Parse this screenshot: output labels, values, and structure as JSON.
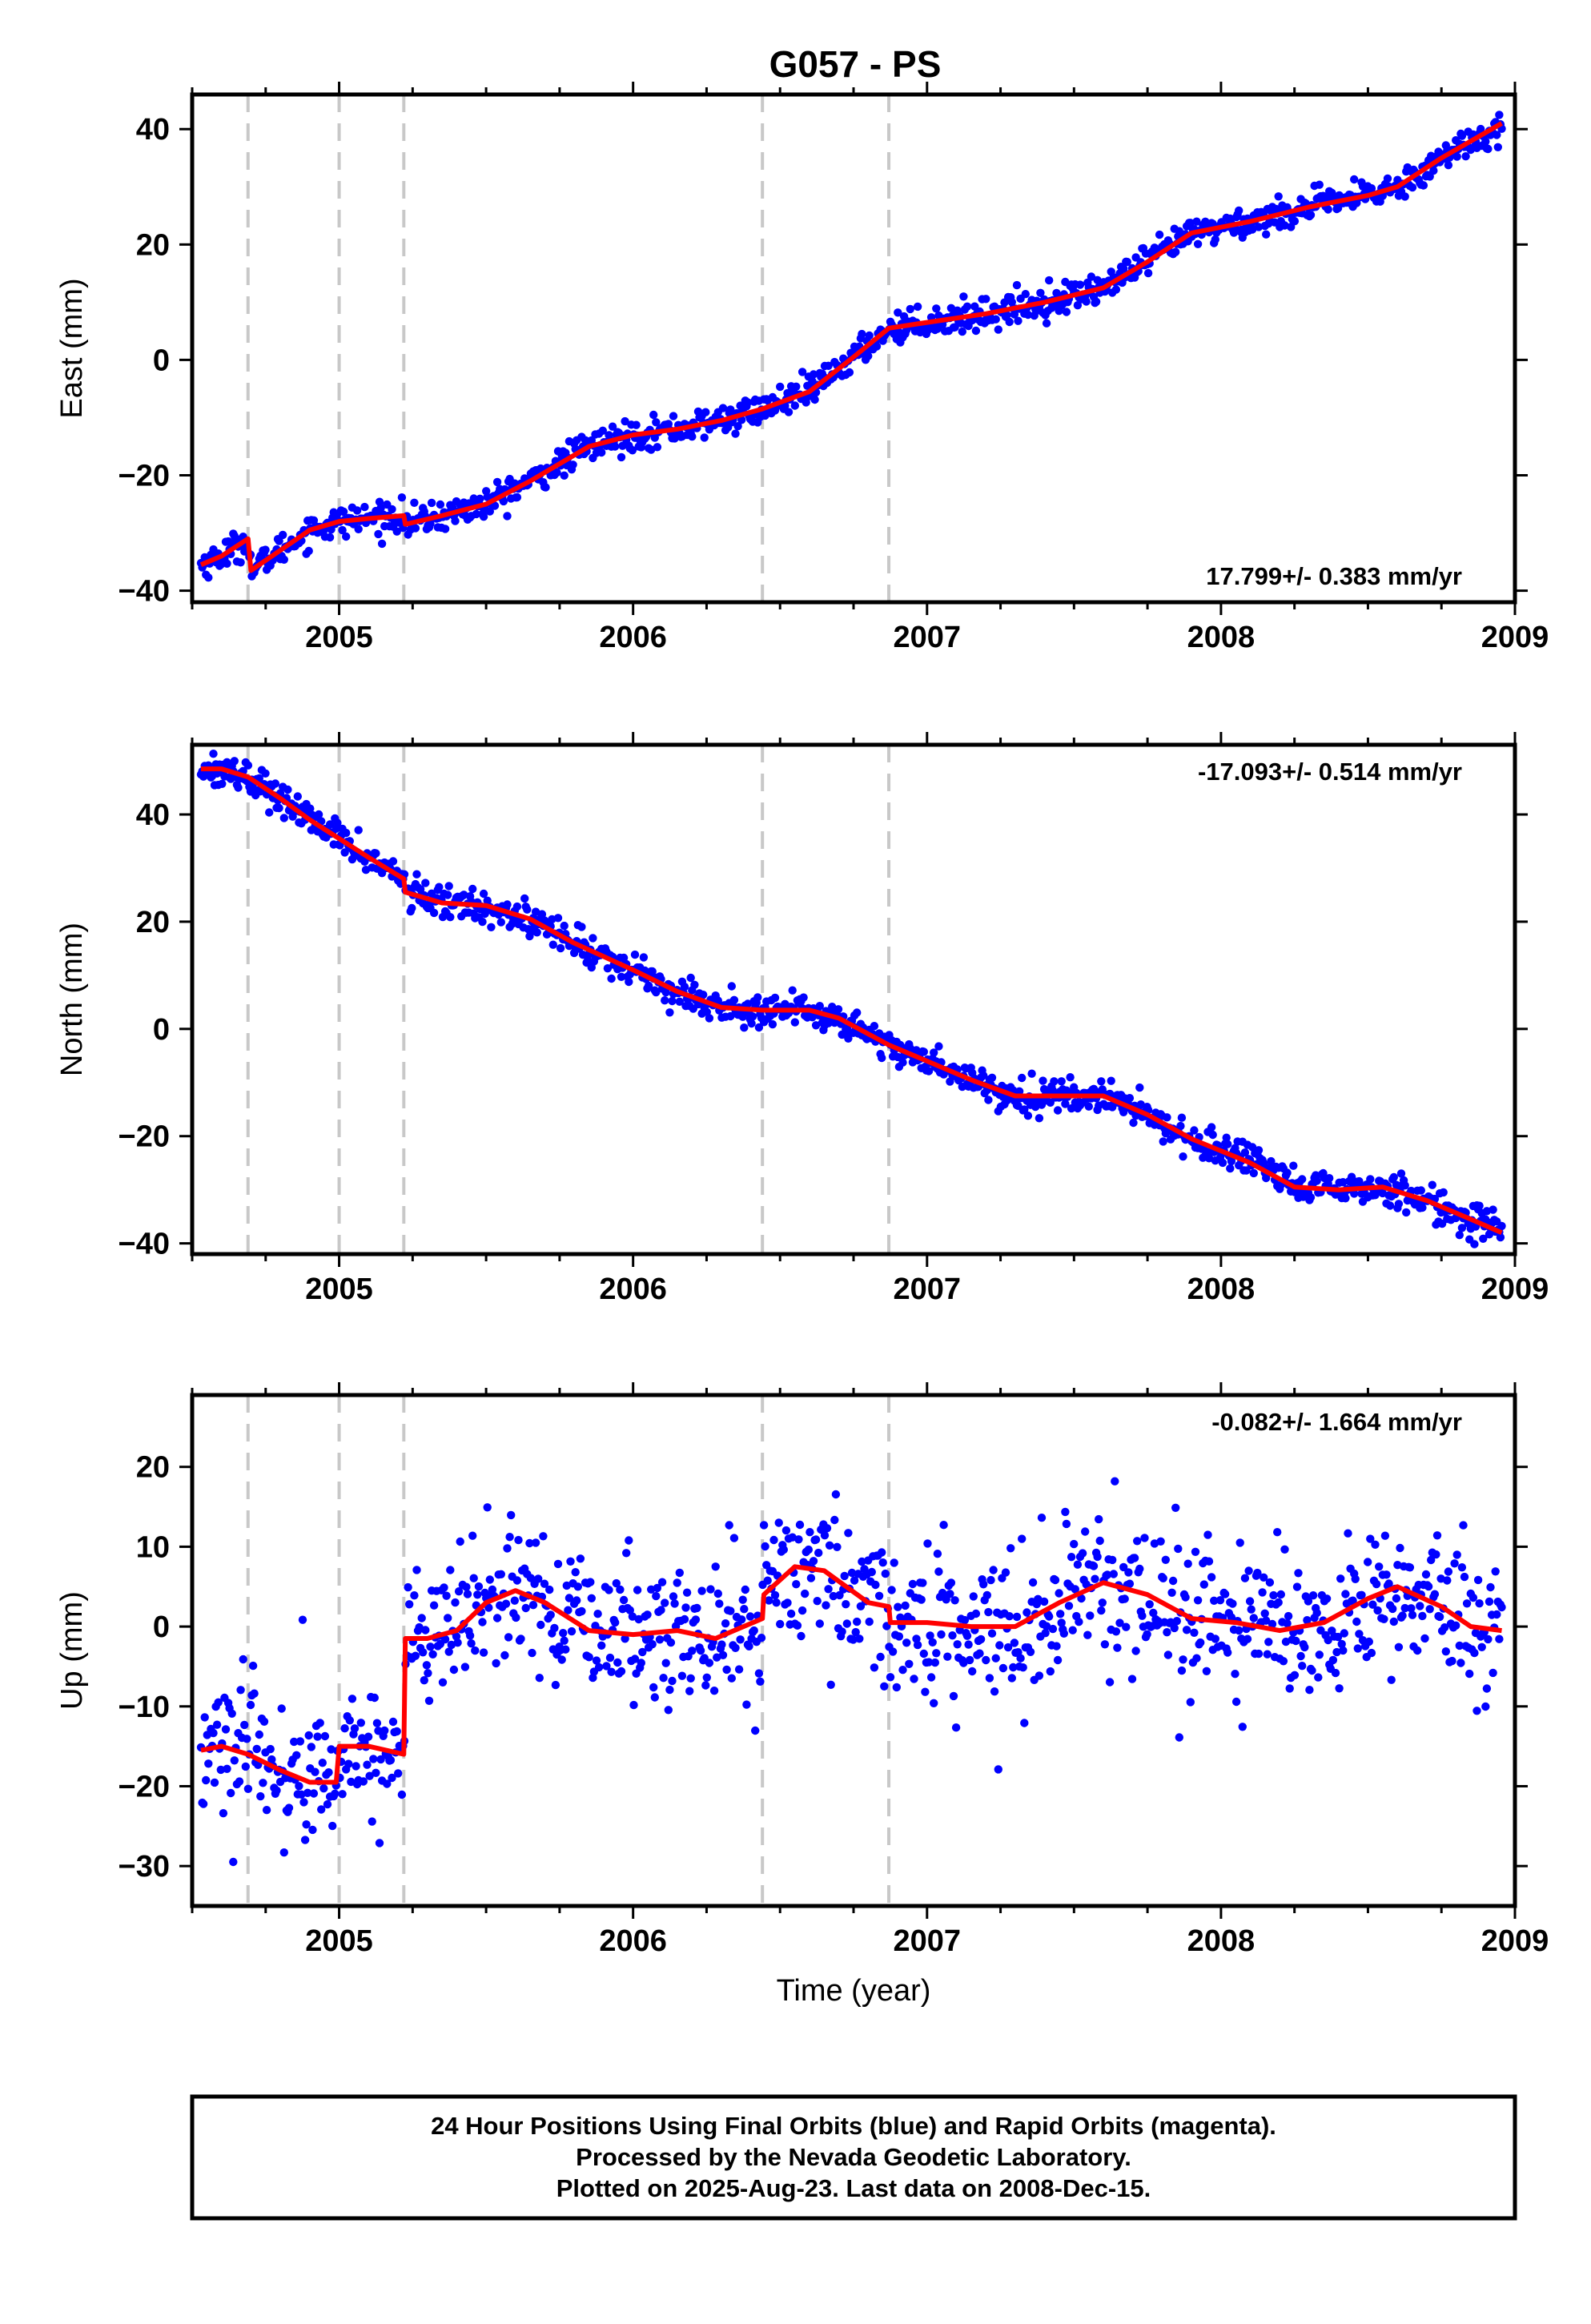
{
  "chart_data": {
    "title": "G057 - PS",
    "type": "scatter",
    "x_ticks": [
      2005,
      2006,
      2007,
      2008,
      2009
    ],
    "xlim": [
      2004.5,
      2009.0
    ],
    "xlabel": "Time (year)",
    "event_lines": [
      2004.69,
      2005.0,
      2005.22,
      2006.44,
      2006.87
    ],
    "event_line_color": "#c8c8c8",
    "point_color": "#0000ff",
    "fit_color": "#ff0000",
    "data_start": 2004.53,
    "data_end": 2008.955,
    "panels": [
      {
        "id": "east",
        "ylabel": "East (mm)",
        "ylim": [
          -42,
          46
        ],
        "y_ticks": [
          -40,
          -20,
          0,
          20,
          40
        ],
        "rate": "17.799+/- 0.383 mm/yr",
        "rate_position": "bottom-right",
        "noise_sd": 1.3,
        "point_count": 1050,
        "fit": [
          [
            2004.53,
            -35.5
          ],
          [
            2004.6,
            -34
          ],
          [
            2004.69,
            -31
          ],
          [
            2004.7,
            -36.5
          ],
          [
            2004.8,
            -33
          ],
          [
            2004.9,
            -29.5
          ],
          [
            2005.0,
            -28
          ],
          [
            2005.1,
            -27.5
          ],
          [
            2005.22,
            -27
          ],
          [
            2005.225,
            -28.5
          ],
          [
            2005.35,
            -27
          ],
          [
            2005.5,
            -25
          ],
          [
            2005.65,
            -21
          ],
          [
            2005.85,
            -15
          ],
          [
            2006.0,
            -13
          ],
          [
            2006.15,
            -12
          ],
          [
            2006.3,
            -10.5
          ],
          [
            2006.44,
            -8.5
          ],
          [
            2006.6,
            -5.5
          ],
          [
            2006.75,
            0.5
          ],
          [
            2006.87,
            5.5
          ],
          [
            2007.0,
            6.5
          ],
          [
            2007.2,
            8
          ],
          [
            2007.4,
            10
          ],
          [
            2007.6,
            12.5
          ],
          [
            2007.75,
            17
          ],
          [
            2007.9,
            22
          ],
          [
            2008.1,
            24
          ],
          [
            2008.3,
            26.5
          ],
          [
            2008.5,
            28.5
          ],
          [
            2008.6,
            30
          ],
          [
            2008.75,
            35
          ],
          [
            2008.955,
            41
          ]
        ]
      },
      {
        "id": "north",
        "ylabel": "North (mm)",
        "ylim": [
          -42,
          53
        ],
        "y_ticks": [
          -40,
          -20,
          0,
          20,
          40
        ],
        "rate": "-17.093+/- 0.514 mm/yr",
        "rate_position": "top-right",
        "noise_sd": 1.5,
        "point_count": 1050,
        "fit": [
          [
            2004.53,
            48.5
          ],
          [
            2004.6,
            48.5
          ],
          [
            2004.69,
            47
          ],
          [
            2004.8,
            43
          ],
          [
            2004.9,
            39
          ],
          [
            2005.0,
            35.5
          ],
          [
            2005.1,
            32
          ],
          [
            2005.22,
            28
          ],
          [
            2005.225,
            25.5
          ],
          [
            2005.35,
            23.5
          ],
          [
            2005.5,
            23
          ],
          [
            2005.65,
            20.5
          ],
          [
            2005.8,
            16
          ],
          [
            2006.0,
            11
          ],
          [
            2006.15,
            7
          ],
          [
            2006.3,
            4
          ],
          [
            2006.44,
            3.5
          ],
          [
            2006.6,
            3.5
          ],
          [
            2006.7,
            2
          ],
          [
            2006.87,
            -3
          ],
          [
            2007.0,
            -6
          ],
          [
            2007.15,
            -9.5
          ],
          [
            2007.3,
            -12.5
          ],
          [
            2007.45,
            -12.5
          ],
          [
            2007.6,
            -12.5
          ],
          [
            2007.75,
            -16
          ],
          [
            2007.9,
            -20.5
          ],
          [
            2008.1,
            -25
          ],
          [
            2008.25,
            -29.5
          ],
          [
            2008.4,
            -30
          ],
          [
            2008.55,
            -29.5
          ],
          [
            2008.7,
            -32
          ],
          [
            2008.85,
            -35.5
          ],
          [
            2008.955,
            -38
          ]
        ]
      },
      {
        "id": "up",
        "ylabel": "Up (mm)",
        "ylim": [
          -35,
          29
        ],
        "y_ticks": [
          -30,
          -20,
          -10,
          0,
          10,
          20
        ],
        "rate": "-0.082+/- 1.664 mm/yr",
        "rate_position": "top-right",
        "noise_sd": 4.5,
        "point_count": 1050,
        "fit": [
          [
            2004.53,
            -15.5
          ],
          [
            2004.6,
            -15
          ],
          [
            2004.69,
            -16
          ],
          [
            2004.8,
            -18
          ],
          [
            2004.9,
            -19.5
          ],
          [
            2004.99,
            -19.5
          ],
          [
            2005.0,
            -15
          ],
          [
            2005.1,
            -15
          ],
          [
            2005.22,
            -16
          ],
          [
            2005.225,
            -1.5
          ],
          [
            2005.3,
            -1.5
          ],
          [
            2005.4,
            -0.5
          ],
          [
            2005.5,
            3
          ],
          [
            2005.6,
            4.5
          ],
          [
            2005.7,
            3
          ],
          [
            2005.85,
            -0.5
          ],
          [
            2006.0,
            -1
          ],
          [
            2006.15,
            -0.5
          ],
          [
            2006.28,
            -1.5
          ],
          [
            2006.44,
            1
          ],
          [
            2006.445,
            4
          ],
          [
            2006.55,
            7.5
          ],
          [
            2006.65,
            7
          ],
          [
            2006.8,
            3
          ],
          [
            2006.87,
            2.5
          ],
          [
            2006.875,
            0.5
          ],
          [
            2007.0,
            0.5
          ],
          [
            2007.15,
            0
          ],
          [
            2007.3,
            0
          ],
          [
            2007.45,
            3
          ],
          [
            2007.6,
            5.5
          ],
          [
            2007.75,
            4
          ],
          [
            2007.9,
            1
          ],
          [
            2008.05,
            0.5
          ],
          [
            2008.2,
            -0.5
          ],
          [
            2008.35,
            0.5
          ],
          [
            2008.5,
            3.5
          ],
          [
            2008.6,
            5
          ],
          [
            2008.75,
            2.5
          ],
          [
            2008.85,
            0
          ],
          [
            2008.955,
            -0.5
          ]
        ]
      }
    ]
  },
  "footer": {
    "line1": "24 Hour Positions Using Final Orbits (blue) and Rapid Orbits (magenta).",
    "line2": "Processed by the Nevada Geodetic Laboratory.",
    "line3": "Plotted on 2025-Aug-23. Last data on 2008-Dec-15."
  }
}
